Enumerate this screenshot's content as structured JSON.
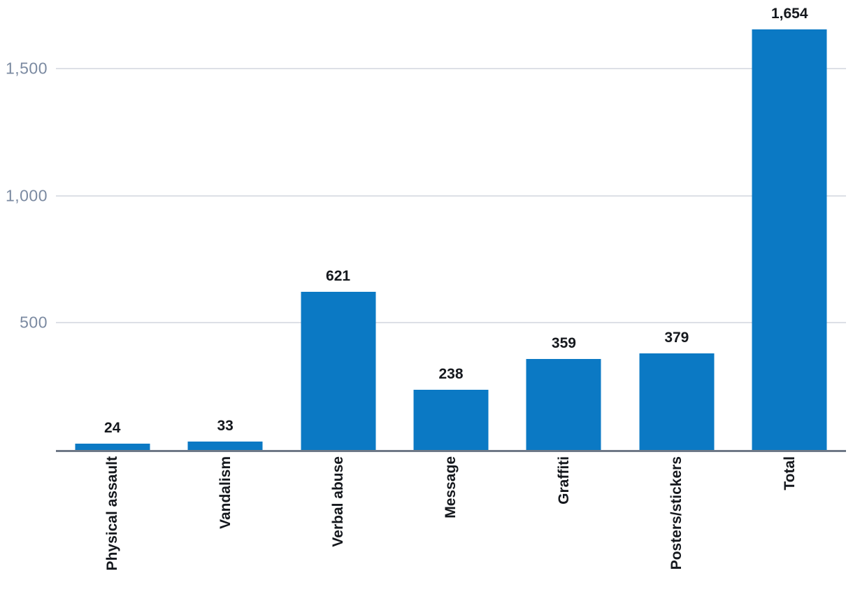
{
  "chart_data": {
    "type": "bar",
    "title": "",
    "xlabel": "",
    "ylabel": "",
    "categories": [
      "Physical assault",
      "Vandalism",
      "Verbal abuse",
      "Message",
      "Graffiti",
      "Posters/stickers",
      "Total"
    ],
    "values": [
      24,
      33,
      621,
      238,
      359,
      379,
      1654
    ],
    "data_labels": [
      "24",
      "33",
      "621",
      "238",
      "359",
      "379",
      "1,654"
    ],
    "yticks": [
      {
        "value": 500,
        "label": "500"
      },
      {
        "value": 1000,
        "label": "1,000"
      },
      {
        "value": 1500,
        "label": "1,500"
      }
    ],
    "ylim": [
      0,
      1770
    ],
    "grid": true,
    "legend": false,
    "colors": {
      "bar": "#0b79c4",
      "gridline": "#dde0e6",
      "axis_line": "#6e7887",
      "tick_label": "#7b8aa1",
      "value_label": "#15181d",
      "category_label": "#15181d",
      "background": "#ffffff"
    }
  }
}
